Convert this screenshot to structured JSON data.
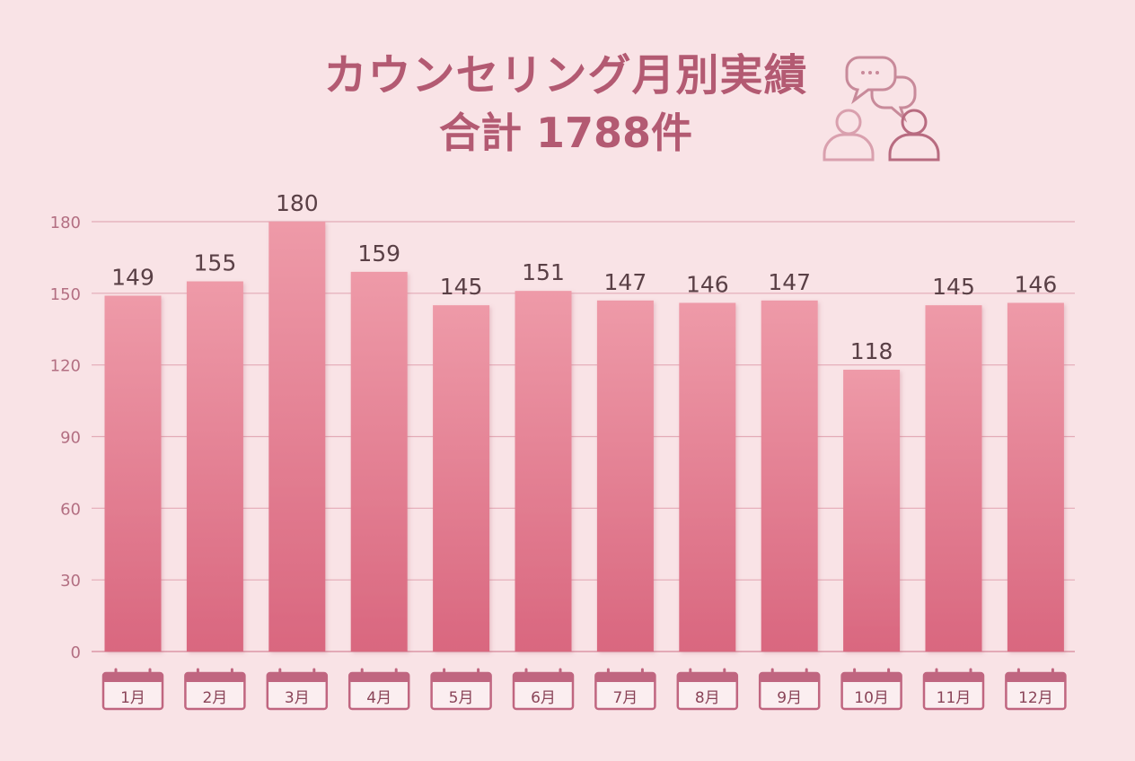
{
  "title": {
    "line1": "カウンセリング月別実績",
    "line2": "合計 1788件"
  },
  "icons": [
    "chat-bubbles-icon",
    "person-icon",
    "person-icon"
  ],
  "colors": {
    "background": "#f9e3e6",
    "bar_top": "#ee9aa8",
    "bar_bottom": "#d9677f",
    "title": "#b35a72",
    "grid": "#e3aab6",
    "tick_label": "#b36f82",
    "value_label": "#5a4046",
    "calendar": "#c06680"
  },
  "chart_data": {
    "type": "bar",
    "categories": [
      "1月",
      "2月",
      "3月",
      "4月",
      "5月",
      "6月",
      "7月",
      "8月",
      "9月",
      "10月",
      "11月",
      "12月"
    ],
    "values": [
      149,
      155,
      180,
      159,
      145,
      151,
      147,
      146,
      147,
      118,
      145,
      146
    ],
    "ylim": [
      0,
      180
    ],
    "yticks": [
      0,
      30,
      60,
      90,
      120,
      150,
      180
    ],
    "grid": true,
    "data_labels": true,
    "category_style": "calendar-icon"
  }
}
